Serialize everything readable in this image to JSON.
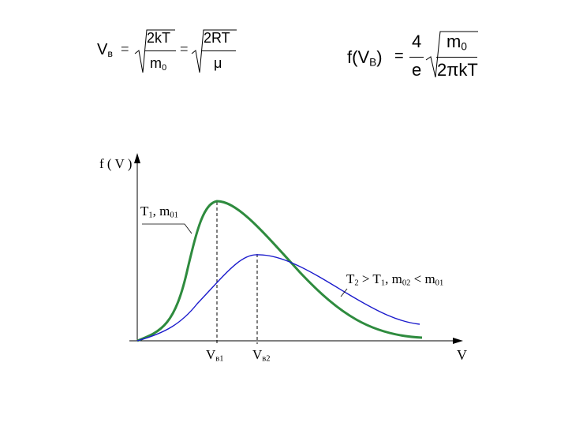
{
  "formula_left": {
    "lhs": "V",
    "lhs_sub": "в",
    "eq1": "=",
    "num1": "2kT",
    "den1": "m",
    "den1_sub": "0",
    "eq2": "=",
    "num2": "2RT",
    "den2": "μ"
  },
  "formula_right": {
    "func": "f(V",
    "func_sub": "B",
    "func_close": ")",
    "eq": "=",
    "num": "4",
    "den": "e",
    "root_num": "m",
    "root_num_sub": "0",
    "root_den": "2πkT"
  },
  "axes": {
    "y_label": "f ( V )",
    "x_label": "V"
  },
  "curves": {
    "curve1_label_main": "T",
    "curve1_label_sub1": "1",
    "curve1_label_mid": ", m",
    "curve1_label_sub2": "01",
    "curve1_color": "#2e8b3e",
    "curve2_label_a": "T",
    "curve2_label_a_sub": "2",
    "curve2_label_b": " > T",
    "curve2_label_b_sub": "1",
    "curve2_label_c": ", m",
    "curve2_label_c_sub": "02",
    "curve2_label_d": " < m",
    "curve2_label_d_sub": "01",
    "curve2_color": "#1a1acc"
  },
  "markers": {
    "v1_main": "V",
    "v1_sub": "в1",
    "v2_main": "V",
    "v2_sub": "в2"
  }
}
